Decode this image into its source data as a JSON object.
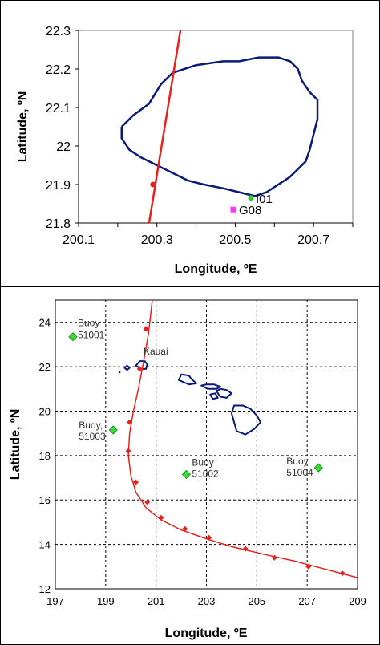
{
  "chart_data": [
    {
      "type": "line",
      "title": "",
      "xlabel": "Longitude, ºE",
      "ylabel": "Latitude, ºN",
      "xlim": [
        200.1,
        200.8
      ],
      "ylim": [
        21.8,
        22.3
      ],
      "xticks": [
        "200.1",
        "200.3",
        "200.5",
        "200.7"
      ],
      "yticks": [
        "21.8",
        "21.9",
        "22",
        "22.1",
        "22.2",
        "22.3"
      ],
      "grid": false,
      "colors": {
        "track": "#e8211e",
        "coast": "#0a1a78",
        "i01": "#33cc33",
        "g08": "#ff33ff"
      },
      "track": {
        "x": [
          200.28,
          200.36
        ],
        "y": [
          21.8,
          22.3
        ]
      },
      "track_point": {
        "x": 200.29,
        "y": 21.9
      },
      "coastline": [
        [
          200.21,
          22.05
        ],
        [
          200.24,
          22.08
        ],
        [
          200.28,
          22.11
        ],
        [
          200.31,
          22.16
        ],
        [
          200.34,
          22.19
        ],
        [
          200.4,
          22.21
        ],
        [
          200.47,
          22.22
        ],
        [
          200.51,
          22.22
        ],
        [
          200.56,
          22.23
        ],
        [
          200.61,
          22.23
        ],
        [
          200.64,
          22.22
        ],
        [
          200.66,
          22.2
        ],
        [
          200.67,
          22.17
        ],
        [
          200.69,
          22.14
        ],
        [
          200.71,
          22.12
        ],
        [
          200.71,
          22.07
        ],
        [
          200.7,
          22.03
        ],
        [
          200.69,
          21.99
        ],
        [
          200.68,
          21.96
        ],
        [
          200.66,
          21.94
        ],
        [
          200.64,
          21.92
        ],
        [
          200.61,
          21.9
        ],
        [
          200.58,
          21.88
        ],
        [
          200.55,
          21.87
        ],
        [
          200.51,
          21.88
        ],
        [
          200.47,
          21.89
        ],
        [
          200.42,
          21.9
        ],
        [
          200.38,
          21.91
        ],
        [
          200.34,
          21.93
        ],
        [
          200.3,
          21.95
        ],
        [
          200.26,
          21.97
        ],
        [
          200.23,
          21.99
        ],
        [
          200.21,
          22.02
        ],
        [
          200.21,
          22.05
        ]
      ],
      "points": [
        {
          "label": "I01",
          "x": 200.54,
          "y": 21.865
        },
        {
          "label": "G08",
          "x": 200.495,
          "y": 21.835
        }
      ]
    },
    {
      "type": "line",
      "title": "",
      "xlabel": "Longitude, ºE",
      "ylabel": "Latitude, ºN",
      "xlim": [
        197,
        209
      ],
      "ylim": [
        12,
        25
      ],
      "xticks": [
        "197",
        "199",
        "201",
        "203",
        "205",
        "207",
        "209"
      ],
      "yticks": [
        "12",
        "14",
        "16",
        "18",
        "20",
        "22",
        "24"
      ],
      "grid": true,
      "island_label": "Kauai",
      "track": {
        "x": [
          209.0,
          208.5,
          207.5,
          206.5,
          205.3,
          204.0,
          203.0,
          202.0,
          201.2,
          200.6,
          200.2,
          200.0,
          199.9,
          199.95,
          200.1,
          200.3,
          200.5,
          200.7,
          200.85
        ],
        "y": [
          12.5,
          12.65,
          12.95,
          13.25,
          13.55,
          13.9,
          14.25,
          14.65,
          15.1,
          15.65,
          16.35,
          17.1,
          18.0,
          19.0,
          20.0,
          21.0,
          22.2,
          23.5,
          25.0
        ]
      },
      "track_markers": {
        "x": [
          208.4,
          207.05,
          205.7,
          204.55,
          203.1,
          202.15,
          201.2,
          200.65,
          200.2,
          199.9,
          199.95,
          200.35,
          200.6
        ],
        "y": [
          12.7,
          13.0,
          13.4,
          13.8,
          14.3,
          14.7,
          15.2,
          15.9,
          16.8,
          18.2,
          19.5,
          21.9,
          23.7
        ]
      },
      "buoys": [
        {
          "line1": "Buoy",
          "line2": "51001",
          "x": 197.7,
          "y": 23.35
        },
        {
          "line1": "Buoy,",
          "line2": "51003",
          "x": 199.3,
          "y": 19.15
        },
        {
          "line1": "Buoy",
          "line2": "51002",
          "x": 202.2,
          "y": 17.15
        },
        {
          "line1": "Buoy",
          "line2": "51004",
          "x": 207.45,
          "y": 17.45
        }
      ],
      "islands": [
        [
          [
            200.2,
            22.05
          ],
          [
            200.35,
            22.25
          ],
          [
            200.55,
            22.25
          ],
          [
            200.65,
            22.1
          ],
          [
            200.6,
            21.9
          ],
          [
            200.4,
            21.9
          ],
          [
            200.2,
            22.05
          ]
        ],
        [
          [
            199.75,
            21.95
          ],
          [
            199.85,
            22.05
          ],
          [
            199.95,
            21.95
          ],
          [
            199.85,
            21.85
          ],
          [
            199.75,
            21.95
          ]
        ],
        [
          [
            201.9,
            21.4
          ],
          [
            202.0,
            21.65
          ],
          [
            202.3,
            21.6
          ],
          [
            202.4,
            21.45
          ],
          [
            202.6,
            21.25
          ],
          [
            202.3,
            21.2
          ],
          [
            201.9,
            21.4
          ]
        ],
        [
          [
            202.8,
            21.15
          ],
          [
            203.0,
            21.2
          ],
          [
            203.3,
            21.2
          ],
          [
            203.55,
            21.1
          ],
          [
            203.4,
            21.0
          ],
          [
            203.05,
            21.0
          ],
          [
            202.8,
            21.15
          ]
        ],
        [
          [
            203.4,
            20.9
          ],
          [
            203.55,
            21.0
          ],
          [
            203.8,
            20.95
          ],
          [
            204.0,
            20.8
          ],
          [
            203.8,
            20.6
          ],
          [
            203.55,
            20.65
          ],
          [
            203.4,
            20.9
          ]
        ],
        [
          [
            203.15,
            20.75
          ],
          [
            203.35,
            20.8
          ],
          [
            203.45,
            20.6
          ],
          [
            203.25,
            20.55
          ],
          [
            203.15,
            20.75
          ]
        ],
        [
          [
            204.1,
            20.25
          ],
          [
            204.45,
            20.25
          ],
          [
            204.75,
            20.1
          ],
          [
            205.0,
            19.8
          ],
          [
            205.15,
            19.5
          ],
          [
            204.9,
            19.2
          ],
          [
            204.55,
            18.95
          ],
          [
            204.2,
            19.1
          ],
          [
            204.1,
            19.5
          ],
          [
            204.0,
            19.9
          ],
          [
            204.1,
            20.25
          ]
        ]
      ]
    }
  ]
}
